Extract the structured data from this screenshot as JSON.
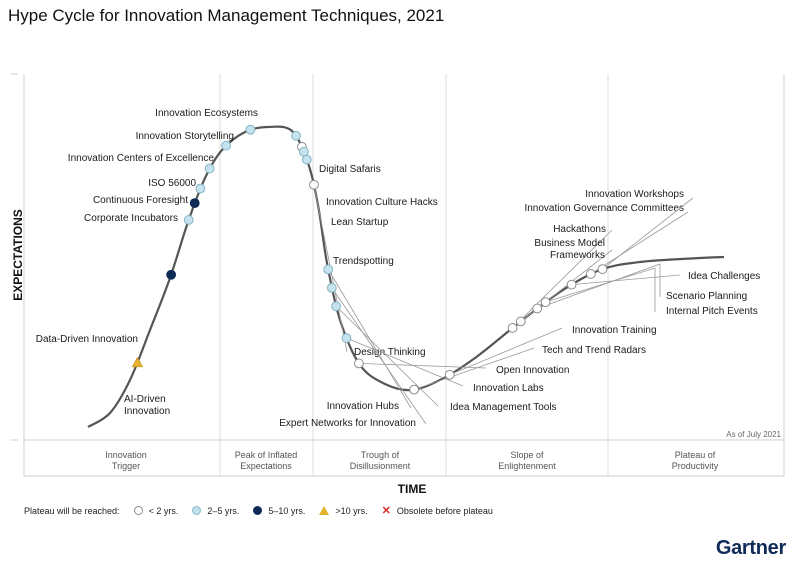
{
  "title": "Hype Cycle for Innovation Management Techniques, 2021",
  "brand": "Gartner",
  "chart_data": {
    "type": "scatter",
    "title": "Hype Cycle for Innovation Management Techniques, 2021",
    "xlabel": "TIME",
    "ylabel": "EXPECTATIONS",
    "note": "As of July 2021",
    "phases": [
      "Innovation\nTrigger",
      "Peak of Inflated\nExpectations",
      "Trough of\nDisillusionment",
      "Slope of\nEnlightenment",
      "Plateau of\nProductivity"
    ],
    "legend": {
      "label": "Plateau will be reached:",
      "items": [
        {
          "key": "lt2",
          "label": "< 2 yrs."
        },
        {
          "key": "2to5",
          "label": "2–5 yrs."
        },
        {
          "key": "5to10",
          "label": "5–10 yrs."
        },
        {
          "key": "gt10",
          "label": ">10 yrs."
        },
        {
          "key": "obsolete",
          "label": "Obsolete before plateau"
        }
      ]
    },
    "points": [
      {
        "label": "AI-Driven\nInnovation",
        "t": 0.08,
        "plateau": "gt10"
      },
      {
        "label": "Data-Driven Innovation",
        "t": 0.17,
        "plateau": "5to10"
      },
      {
        "label": "Corporate Incubators",
        "t": 0.225,
        "plateau": "2to5"
      },
      {
        "label": "Continuous Foresight",
        "t": 0.242,
        "plateau": "5to10"
      },
      {
        "label": "ISO 56000",
        "t": 0.257,
        "plateau": "2to5"
      },
      {
        "label": "Innovation Centers of Excellence",
        "t": 0.278,
        "plateau": "2to5"
      },
      {
        "label": "Innovation Storytelling",
        "t": 0.305,
        "plateau": "2to5"
      },
      {
        "label": "Innovation Ecosystems",
        "t": 0.333,
        "plateau": "2to5"
      },
      {
        "label": "Digital Safaris",
        "t": 0.38,
        "plateau": "2to5"
      },
      {
        "label": "Innovation Culture Hacks",
        "t": 0.392,
        "plateau": "lt2"
      },
      {
        "label": "Lean Startup",
        "t": 0.397,
        "plateau": "2to5"
      },
      {
        "label": "Trendspotting",
        "t": 0.405,
        "plateau": "2to5"
      },
      {
        "label": "Design Thinking",
        "t": 0.43,
        "plateau": "lt2"
      },
      {
        "label": "Innovation Hubs",
        "t": 0.512,
        "plateau": "2to5"
      },
      {
        "label": "Expert Networks for Innovation",
        "t": 0.53,
        "plateau": "2to5"
      },
      {
        "label": "Idea Management Tools",
        "t": 0.548,
        "plateau": "2to5"
      },
      {
        "label": "Innovation Labs",
        "t": 0.58,
        "plateau": "2to5"
      },
      {
        "label": "Open Innovation",
        "t": 0.607,
        "plateau": "lt2"
      },
      {
        "label": "Tech and Trend Radars",
        "t": 0.668,
        "plateau": "lt2"
      },
      {
        "label": "Innovation Training",
        "t": 0.705,
        "plateau": "lt2"
      },
      {
        "label": "Hackathons",
        "t": 0.78,
        "plateau": "lt2"
      },
      {
        "label": "Business Model\nFrameworks",
        "t": 0.79,
        "plateau": "lt2"
      },
      {
        "label": "Scenario Planning",
        "t": 0.81,
        "plateau": "lt2"
      },
      {
        "label": "Internal Pitch Events",
        "t": 0.82,
        "plateau": "lt2"
      },
      {
        "label": "Idea Challenges",
        "t": 0.85,
        "plateau": "lt2"
      },
      {
        "label": "Innovation Governance Committees",
        "t": 0.871,
        "plateau": "lt2"
      },
      {
        "label": "Innovation Workshops",
        "t": 0.883,
        "plateau": "lt2"
      }
    ]
  }
}
